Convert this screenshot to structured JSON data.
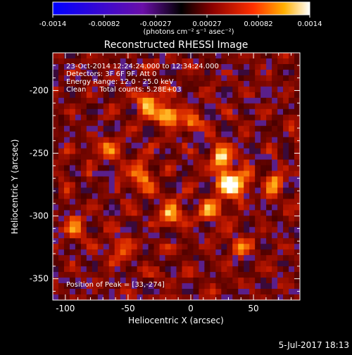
{
  "colorbar": {
    "tick_labels": [
      "-0.0014",
      "-0.00082",
      "-0.00027",
      "0.00027",
      "0.00082",
      "0.0014"
    ],
    "units": "(photons cm⁻² s⁻¹ asec⁻²)",
    "range": [
      -0.0014,
      0.0014
    ]
  },
  "chart_data": {
    "type": "heatmap",
    "title": "Reconstructed RHESSI Image",
    "xlabel": "Heliocentric X (arcsec)",
    "ylabel": "Heliocentric Y (arcsec)",
    "xlim": [
      -110,
      87
    ],
    "ylim": [
      -367,
      -170
    ],
    "x_ticks": [
      -100,
      -50,
      0,
      50
    ],
    "y_ticks": [
      -350,
      -300,
      -250,
      -200
    ],
    "colormap": "red-temperature",
    "peak": [
      33,
      -274
    ],
    "annotations": [
      "23-Oct-2014 12:24:24.000 to 12:34:24.000",
      "Detectors: 3F 6F 9F, Att 0",
      "Energy Range: 12.0 - 25.0 keV",
      "Clean      Total counts: 5.28E+03",
      "Position of Peak = [33,-274]"
    ]
  },
  "timestamp": "5-Jul-2017 18:13"
}
